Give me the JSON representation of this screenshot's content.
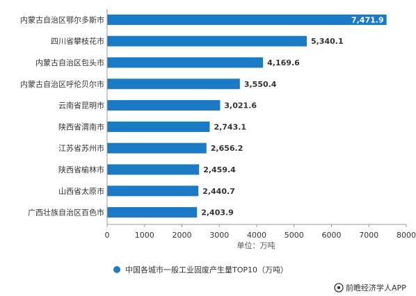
{
  "chart_data": {
    "type": "bar",
    "orientation": "horizontal",
    "categories": [
      "内蒙古自治区鄂尔多斯市",
      "四川省攀枝花市",
      "内蒙古自治区包头市",
      "内蒙古自治区呼伦贝尔市",
      "云南省昆明市",
      "陕西省渭南市",
      "江苏省苏州市",
      "陕西省榆林市",
      "山西省太原市",
      "广西壮族自治区百色市"
    ],
    "series": [
      {
        "name": "中国各城市一般工业固废产生量TOP10（万吨）",
        "values": [
          7471.9,
          5340.1,
          4169.6,
          3550.4,
          3021.6,
          2743.1,
          2656.2,
          2459.4,
          2440.7,
          2403.9
        ],
        "value_labels": [
          "7,471.9",
          "5,340.1",
          "4,169.6",
          "3,550.4",
          "3,021.6",
          "2,743.1",
          "2,656.2",
          "2,459.4",
          "2,440.7",
          "2,403.9"
        ]
      }
    ],
    "xlim": [
      0,
      8000
    ],
    "xticks": [
      0,
      1000,
      2000,
      3000,
      4000,
      5000,
      6000,
      7000,
      8000
    ],
    "xtick_labels": [
      "0",
      "1000",
      "2000",
      "3000",
      "4000",
      "5000",
      "6000",
      "7000",
      "8000"
    ],
    "xlabel": "单位：万吨",
    "ylabel": "",
    "title": "",
    "grid": false,
    "legend_position": "bottom",
    "bar_color": "#1a7ac4",
    "axis_color": "#999999"
  },
  "source": "前瞻经济学人APP",
  "source_icon": "camera-lens-icon"
}
